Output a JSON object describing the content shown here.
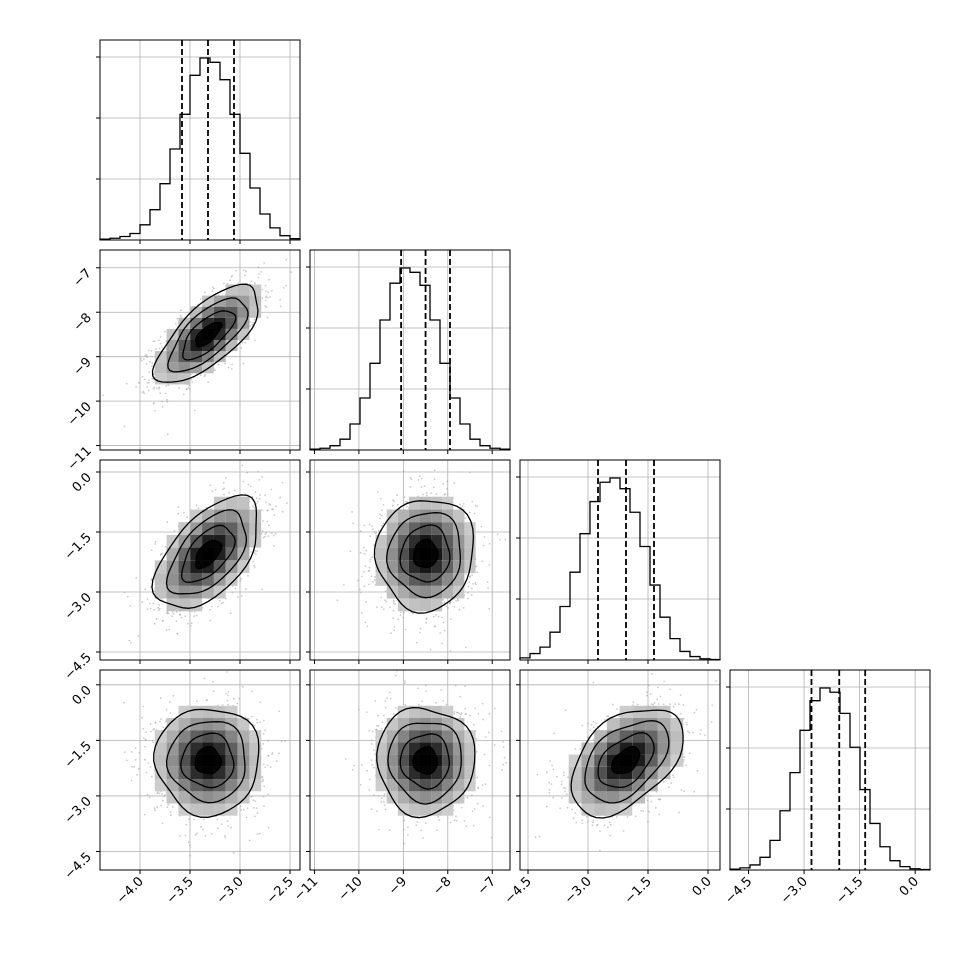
{
  "chart_data": {
    "type": "corner",
    "parameters": [
      {
        "range": [
          -4.4,
          -2.4
        ],
        "ticks": [
          -4.0,
          -3.5,
          -3.0,
          -2.5
        ],
        "tick_labels": [
          "−4.0",
          "−3.5",
          "−3.0",
          "−2.5"
        ],
        "quantiles": [
          -3.58,
          -3.32,
          -3.06
        ]
      },
      {
        "range": [
          -11.1,
          -6.6
        ],
        "ticks": [
          -11,
          -10,
          -9,
          -8,
          -7
        ],
        "tick_labels": [
          "−11",
          "−10",
          "−9",
          "−8",
          "−7"
        ],
        "quantiles": [
          -9.05,
          -8.5,
          -7.95
        ]
      },
      {
        "range": [
          -4.7,
          0.3
        ],
        "ticks": [
          -4.5,
          -3.0,
          -1.5,
          0.0
        ],
        "tick_labels": [
          "−4.5",
          "−3.0",
          "−1.5",
          "0.0"
        ],
        "quantiles": [
          -2.75,
          -2.05,
          -1.35
        ]
      },
      {
        "range": [
          -5.0,
          0.4
        ],
        "ticks": [
          -4.5,
          -3.0,
          -1.5,
          0.0
        ],
        "tick_labels": [
          "−4.5",
          "−3.0",
          "−1.5",
          "0.0"
        ],
        "quantiles": [
          -2.8,
          -2.05,
          -1.35
        ]
      }
    ],
    "histograms": [
      {
        "bin_edges": [
          -4.4,
          -4.3,
          -4.2,
          -4.1,
          -4.0,
          -3.9,
          -3.8,
          -3.7,
          -3.6,
          -3.5,
          -3.4,
          -3.3,
          -3.2,
          -3.1,
          -3.0,
          -2.9,
          -2.8,
          -2.7,
          -2.6,
          -2.5,
          -2.4
        ],
        "counts": [
          2,
          4,
          8,
          15,
          35,
          70,
          130,
          210,
          290,
          380,
          420,
          410,
          370,
          290,
          200,
          120,
          60,
          28,
          10,
          3
        ]
      },
      {
        "bin_edges": [
          -11.1,
          -10.875,
          -10.65,
          -10.425,
          -10.2,
          -9.975,
          -9.75,
          -9.525,
          -9.3,
          -9.075,
          -8.85,
          -8.625,
          -8.4,
          -8.175,
          -7.95,
          -7.725,
          -7.5,
          -7.275,
          -7.05,
          -6.825,
          -6.6
        ],
        "counts": [
          2,
          4,
          10,
          25,
          60,
          120,
          200,
          300,
          385,
          420,
          410,
          380,
          300,
          200,
          120,
          60,
          25,
          10,
          4,
          2
        ]
      },
      {
        "bin_edges": [
          -4.7,
          -4.45,
          -4.2,
          -3.95,
          -3.7,
          -3.45,
          -3.2,
          -2.95,
          -2.7,
          -2.45,
          -2.2,
          -1.95,
          -1.7,
          -1.45,
          -1.2,
          -0.95,
          -0.7,
          -0.45,
          -0.2,
          0.05,
          0.3
        ],
        "counts": [
          5,
          15,
          30,
          65,
          125,
          205,
          295,
          370,
          415,
          425,
          400,
          345,
          265,
          175,
          100,
          50,
          20,
          8,
          3,
          1
        ]
      },
      {
        "bin_edges": [
          -5.0,
          -4.73,
          -4.46,
          -4.19,
          -3.92,
          -3.65,
          -3.38,
          -3.11,
          -2.84,
          -2.57,
          -2.3,
          -2.03,
          -1.76,
          -1.49,
          -1.22,
          -0.95,
          -0.68,
          -0.41,
          -0.14,
          0.13,
          0.4
        ],
        "counts": [
          2,
          5,
          12,
          30,
          70,
          140,
          230,
          330,
          400,
          430,
          420,
          370,
          290,
          190,
          110,
          55,
          22,
          8,
          3,
          1
        ]
      }
    ],
    "correlations": [
      [
        1.0,
        0.7,
        0.55,
        0.0
      ],
      [
        0.7,
        1.0,
        0.05,
        0.0
      ],
      [
        0.55,
        0.05,
        1.0,
        0.45
      ],
      [
        0.0,
        0.0,
        0.45,
        1.0
      ]
    ],
    "grid": true,
    "colors": {
      "line": "#000000",
      "points": "#a0a0a0",
      "grid": "#b0b0b0"
    }
  }
}
